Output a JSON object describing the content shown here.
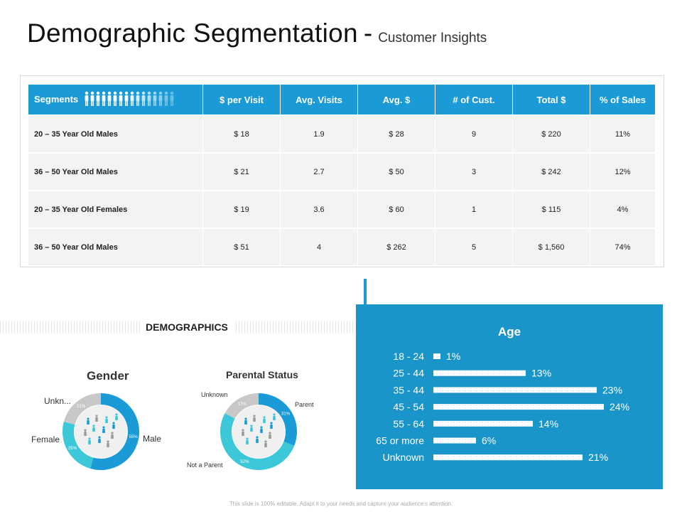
{
  "header": {
    "title": "Demographic Segmentation",
    "separator": "-",
    "subtitle": "Customer Insights"
  },
  "colors": {
    "accent": "#1a9bd7",
    "panel": "#1a95c9",
    "teal": "#3cc8d8",
    "gray": "#c8c8c8"
  },
  "table": {
    "headers": [
      "Segments",
      "$ per Visit",
      "Avg. Visits",
      "Avg. $",
      "# of Cust.",
      "Total $",
      "% of Sales"
    ],
    "rows": [
      [
        "20 – 35 Year Old Males",
        "$ 18",
        "1.9",
        "$ 28",
        "9",
        "$ 220",
        "11%"
      ],
      [
        "36 – 50 Year Old Males",
        "$ 21",
        "2.7",
        "$ 50",
        "3",
        "$ 242",
        "12%"
      ],
      [
        "20 – 35 Year Old Females",
        "$ 19",
        "3.6",
        "$ 60",
        "1",
        "$ 115",
        "4%"
      ],
      [
        "36 – 50 Year Old Males",
        "$ 51",
        "4",
        "$ 262",
        "5",
        "$ 1,560",
        "74%"
      ]
    ]
  },
  "demographics": {
    "label": "DEMOGRAPHICS"
  },
  "chart_data": [
    {
      "type": "pie",
      "title": "Gender",
      "labels": [
        "Male",
        "Female",
        "Unkn..."
      ],
      "values": [
        55,
        25,
        21
      ],
      "value_labels": [
        "55%",
        "25%",
        "21%"
      ]
    },
    {
      "type": "pie",
      "title": "Parental Status",
      "labels": [
        "Parent",
        "Not a Parent",
        "Unknown"
      ],
      "values": [
        31,
        52,
        17
      ],
      "value_labels": [
        "31%",
        "52%",
        "17%"
      ]
    },
    {
      "type": "bar",
      "title": "Age",
      "categories": [
        "18 - 24",
        "25 - 44",
        "35 - 44",
        "45 - 54",
        "55 - 64",
        "65 or more",
        "Unknown"
      ],
      "values": [
        1,
        13,
        23,
        24,
        14,
        6,
        21
      ],
      "value_labels": [
        "1%",
        "13%",
        "23%",
        "24%",
        "14%",
        "6%",
        "21%"
      ],
      "orientation": "horizontal"
    }
  ],
  "footer": {
    "text": "This slide is 100% editable. Adapt it to your needs and capture your audience's attention."
  }
}
